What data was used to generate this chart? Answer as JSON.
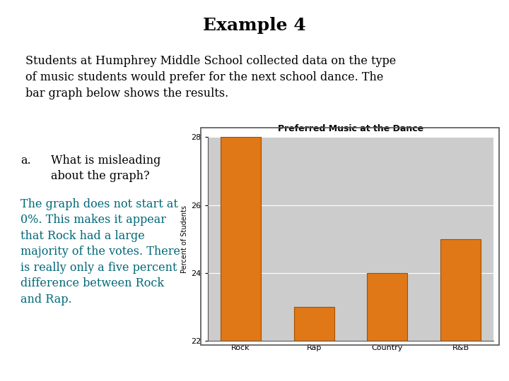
{
  "title": "Example 4",
  "paragraph": "Students at Humphrey Middle School collected data on the type\nof music students would prefer for the next school dance. The\nbar graph below shows the results.",
  "question_label": "a.",
  "question_text": "What is misleading\n     about the graph?",
  "answer_text": "The graph does not start at\n0%. This makes it appear\nthat Rock had a large\nmajority of the votes. There\nis really only a five percent\ndifference between Rock\nand Rap.",
  "chart_title": "Preferred Music at the Dance",
  "categories": [
    "Rock",
    "Rap",
    "Country",
    "R&B"
  ],
  "values": [
    28,
    23,
    24,
    25
  ],
  "bar_color": "#E07818",
  "bar_edge_color": "#A05000",
  "ylabel": "Percent of Students",
  "ylim": [
    22,
    28
  ],
  "yticks": [
    22,
    24,
    26,
    28
  ],
  "chart_bg": "#CCCCCC",
  "chart_border": "#555555",
  "title_fontsize": 18,
  "para_fontsize": 11.5,
  "question_fontsize": 11.5,
  "answer_fontsize": 11.5,
  "answer_color": "#006878",
  "chart_title_fontsize": 9,
  "axis_label_fontsize": 7,
  "tick_fontsize": 8,
  "bg_color": "#FFFFFF"
}
